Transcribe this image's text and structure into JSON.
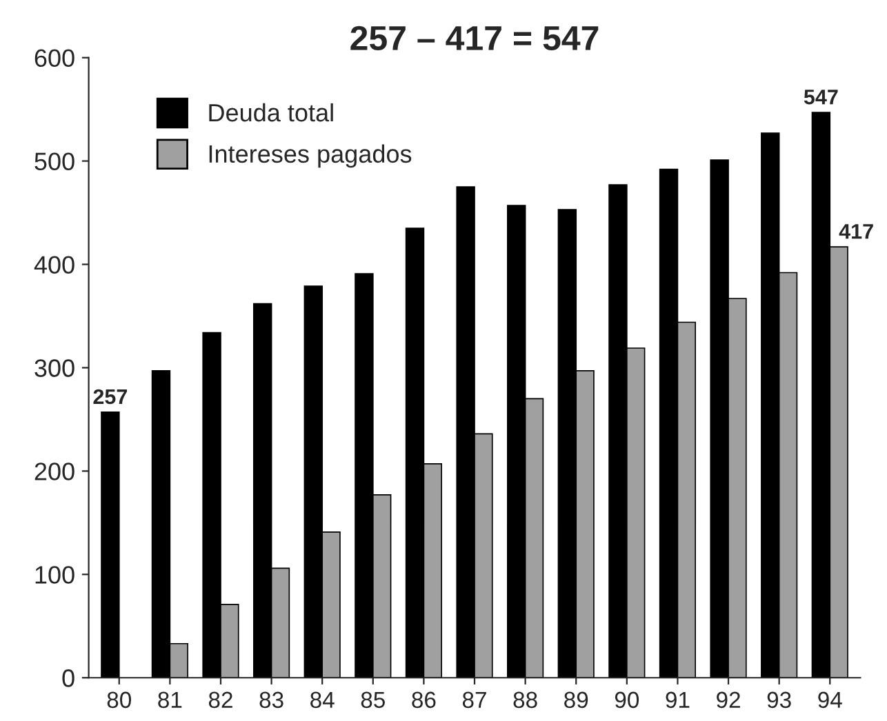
{
  "chart_data": {
    "type": "bar",
    "title": "257 – 417 = 547",
    "categories": [
      "80",
      "81",
      "82",
      "83",
      "84",
      "85",
      "86",
      "87",
      "88",
      "89",
      "90",
      "91",
      "92",
      "93",
      "94"
    ],
    "series": [
      {
        "name": "Deuda total",
        "color": "#000000",
        "values": [
          257,
          297,
          334,
          362,
          379,
          391,
          435,
          475,
          457,
          453,
          477,
          492,
          501,
          527,
          547
        ],
        "value_labels": [
          "257",
          null,
          null,
          null,
          null,
          null,
          null,
          null,
          null,
          null,
          null,
          null,
          null,
          null,
          "547"
        ]
      },
      {
        "name": "Intereses pagados",
        "color": "#a0a0a0",
        "values": [
          null,
          33,
          71,
          106,
          141,
          177,
          207,
          236,
          270,
          297,
          319,
          344,
          367,
          392,
          417
        ],
        "value_labels": [
          null,
          null,
          null,
          null,
          null,
          null,
          null,
          null,
          null,
          null,
          null,
          null,
          null,
          null,
          "417"
        ]
      }
    ],
    "ylim": [
      0,
      600
    ],
    "yticks": [
      0,
      100,
      200,
      300,
      400,
      500,
      600
    ],
    "grid": false,
    "legend": "top left"
  }
}
